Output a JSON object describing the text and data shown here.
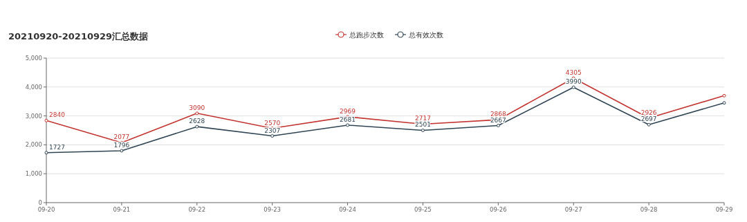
{
  "chart_data": {
    "type": "line",
    "title": "20210920-20210929汇总数据",
    "categories": [
      "09-20",
      "09-21",
      "09-22",
      "09-23",
      "09-24",
      "09-25",
      "09-26",
      "09-27",
      "09-28",
      "09-29"
    ],
    "series": [
      {
        "name": "总跑步次数",
        "color": "#c23531",
        "values": [
          2840,
          2077,
          3090,
          2570,
          2969,
          2717,
          2868,
          4305,
          2926,
          3700
        ],
        "value_labels": [
          "2840",
          "2077",
          "3090",
          "2570",
          "2969",
          "2717",
          "2868",
          "4305",
          "2926",
          null
        ]
      },
      {
        "name": "总有效次数",
        "color": "#2f4554",
        "values": [
          1727,
          1796,
          2628,
          2307,
          2681,
          2501,
          2667,
          3990,
          2697,
          3450
        ],
        "value_labels": [
          "1727",
          "1796",
          "2628",
          "2307",
          "2681",
          "2501",
          "2667",
          "3990",
          "2697",
          null
        ]
      }
    ],
    "ylim": [
      0,
      5000
    ],
    "yticks": [
      0,
      {
        "value": 1000,
        "label": "1,000"
      },
      {
        "value": 2000,
        "label": "2,000"
      },
      {
        "value": 3000,
        "label": "3,000"
      },
      {
        "value": 4000,
        "label": "4,000"
      },
      {
        "value": 5000,
        "label": "5,000"
      }
    ],
    "grid": "y",
    "legend": "top",
    "marker": "circle",
    "line_style": "solid"
  }
}
